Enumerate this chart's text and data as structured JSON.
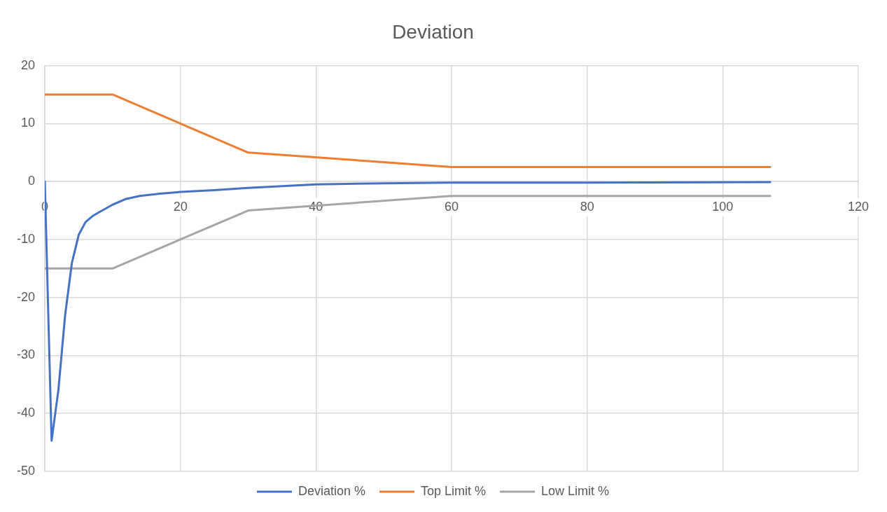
{
  "chart_data": {
    "type": "line",
    "title": "Deviation",
    "xlim": [
      0,
      120
    ],
    "xticks": [
      0,
      20,
      40,
      60,
      80,
      100,
      120
    ],
    "ylim": [
      -50,
      20
    ],
    "yticks": [
      -50,
      -40,
      -30,
      -20,
      -10,
      0,
      10,
      20
    ],
    "grid": true,
    "legend": "bottom",
    "marker": "none",
    "series": [
      {
        "name": "Deviation %",
        "color": "#4472c4",
        "x": [
          0,
          1,
          2,
          3,
          4,
          5,
          6,
          7,
          8,
          10,
          12,
          14,
          17,
          20,
          25,
          30,
          40,
          50,
          60,
          80,
          107
        ],
        "values": [
          0,
          -44.7,
          -36,
          -23,
          -14,
          -9.2,
          -7,
          -6,
          -5.3,
          -4,
          -3,
          -2.5,
          -2.1,
          -1.8,
          -1.5,
          -1.1,
          -0.5,
          -0.3,
          -0.2,
          -0.2,
          -0.1
        ]
      },
      {
        "name": "Top Limit %",
        "color": "#ed7d31",
        "x": [
          0,
          10,
          30,
          60,
          107
        ],
        "values": [
          15,
          15,
          5,
          2.5,
          2.5
        ]
      },
      {
        "name": "Low Limit %",
        "color": "#a5a5a5",
        "x": [
          0,
          10,
          30,
          60,
          107
        ],
        "values": [
          -15,
          -15,
          -5,
          -2.5,
          -2.5
        ]
      }
    ]
  }
}
